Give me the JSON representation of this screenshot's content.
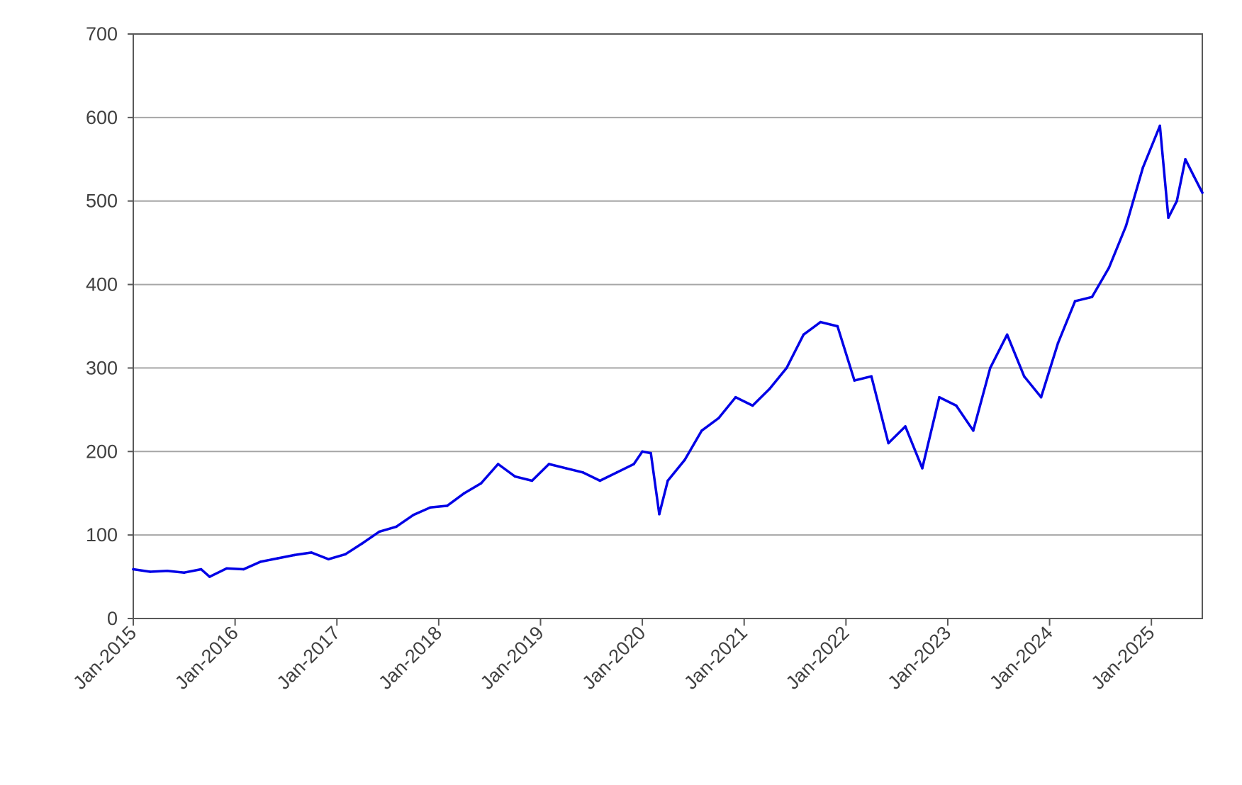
{
  "chart_data": {
    "type": "line",
    "title": "",
    "xlabel": "",
    "ylabel": "",
    "ylim": [
      0,
      700
    ],
    "xlim": [
      "2015-01",
      "2025-07"
    ],
    "grid": "horizontal",
    "legend": "none",
    "y_ticks": [
      "0",
      "100",
      "200",
      "300",
      "400",
      "500",
      "600",
      "700"
    ],
    "x_ticks": [
      "Jan-2015",
      "Jan-2016",
      "Jan-2017",
      "Jan-2018",
      "Jan-2019",
      "Jan-2020",
      "Jan-2021",
      "Jan-2022",
      "Jan-2023",
      "Jan-2024",
      "Jan-2025"
    ],
    "colors": {
      "line": "#0000e6",
      "grid": "#a6a6a6",
      "axis": "#595959"
    },
    "series": [
      {
        "x": [
          "2015-01",
          "2015-03",
          "2015-05",
          "2015-07",
          "2015-09",
          "2015-10",
          "2015-12",
          "2016-02",
          "2016-04",
          "2016-06",
          "2016-08",
          "2016-10",
          "2016-12",
          "2017-02",
          "2017-04",
          "2017-06",
          "2017-08",
          "2017-10",
          "2017-12",
          "2018-02",
          "2018-04",
          "2018-06",
          "2018-08",
          "2018-10",
          "2018-12",
          "2019-02",
          "2019-04",
          "2019-06",
          "2019-08",
          "2019-10",
          "2019-12",
          "2020-01",
          "2020-02",
          "2020-03",
          "2020-04",
          "2020-06",
          "2020-08",
          "2020-10",
          "2020-12",
          "2021-02",
          "2021-04",
          "2021-06",
          "2021-08",
          "2021-10",
          "2021-12",
          "2022-02",
          "2022-04",
          "2022-06",
          "2022-08",
          "2022-10",
          "2022-12",
          "2023-02",
          "2023-04",
          "2023-06",
          "2023-08",
          "2023-10",
          "2023-12",
          "2024-02",
          "2024-04",
          "2024-06",
          "2024-08",
          "2024-10",
          "2024-12",
          "2025-02",
          "2025-03",
          "2025-04",
          "2025-05",
          "2025-06",
          "2025-07"
        ],
        "y": [
          59,
          56,
          57,
          55,
          59,
          50,
          60,
          59,
          68,
          72,
          76,
          79,
          71,
          77,
          90,
          104,
          110,
          124,
          133,
          135,
          150,
          162,
          185,
          170,
          165,
          185,
          180,
          175,
          165,
          175,
          185,
          200,
          198,
          125,
          165,
          190,
          225,
          240,
          265,
          255,
          275,
          300,
          340,
          355,
          350,
          285,
          290,
          210,
          230,
          180,
          265,
          255,
          225,
          300,
          340,
          290,
          265,
          330,
          380,
          385,
          420,
          470,
          540,
          590,
          480,
          500,
          550,
          530,
          510
        ]
      }
    ]
  }
}
